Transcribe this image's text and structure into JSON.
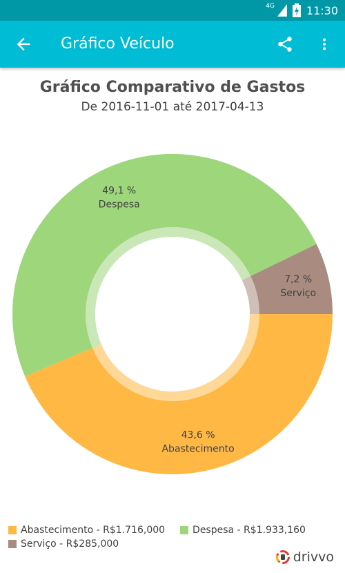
{
  "status_bar": {
    "network": "4G",
    "time": "11:30"
  },
  "app_bar": {
    "title": "Gráfico Veículo",
    "back_icon": "arrow-back-icon",
    "share_icon": "share-icon",
    "more_icon": "more-vert-icon"
  },
  "chart": {
    "title": "Gráfico Comparativo de Gastos",
    "subtitle": "De 2016-11-01 até 2017-04-13"
  },
  "chart_data": {
    "type": "pie",
    "donut": true,
    "title": "Gráfico Comparativo de Gastos",
    "subtitle": "De 2016-11-01 até 2017-04-13",
    "slices": [
      {
        "name": "Despesa",
        "percent": 49.1,
        "label": "49,1 %",
        "color": "#9ed67c"
      },
      {
        "name": "Serviço",
        "percent": 7.2,
        "label": "7,2 %",
        "color": "#a98b7f"
      },
      {
        "name": "Abastecimento",
        "percent": 43.6,
        "label": "43,6 %",
        "color": "#ffb844"
      }
    ]
  },
  "legend": [
    {
      "label": "Abastecimento - R$1.716,000",
      "color": "#ffb844"
    },
    {
      "label": "Despesa - R$1.933,160",
      "color": "#9ed67c"
    },
    {
      "label": "Serviço - R$285,000",
      "color": "#a98b7f"
    }
  ],
  "brand": {
    "name": "drivvo"
  }
}
